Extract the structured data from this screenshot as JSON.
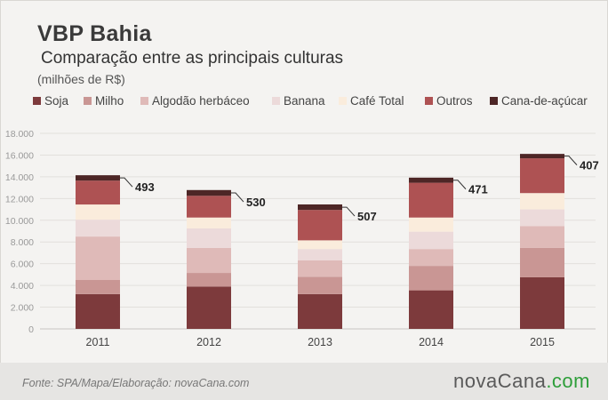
{
  "header": {
    "title": "VBP Bahia",
    "subtitle": "Comparação entre as principais culturas",
    "unit": "(milhões de R$)"
  },
  "footer": {
    "source": "Fonte: SPA/Mapa/Elaboração: novaCana.com",
    "brand_main": "novaCana",
    "brand_suffix": ".com",
    "brand_suffix_color": "#2e9e3a"
  },
  "chart_data": {
    "type": "bar",
    "stacked": true,
    "title": "VBP Bahia",
    "subtitle": "Comparação entre as principais culturas",
    "ylabel": "(milhões de R$)",
    "categories": [
      "2011",
      "2012",
      "2013",
      "2014",
      "2015"
    ],
    "ylim": [
      0,
      18000
    ],
    "yticks": [
      0,
      2000,
      4000,
      6000,
      8000,
      10000,
      12000,
      14000,
      16000,
      18000
    ],
    "ytick_labels": [
      "0",
      "2.000",
      "4.000",
      "6.000",
      "8.000",
      "10.000",
      "12.000",
      "14.000",
      "16.000",
      "18.000"
    ],
    "grid": true,
    "legend_position": "top",
    "series": [
      {
        "name": "Soja",
        "color": "#7d3a3c",
        "values": [
          3200,
          3900,
          3200,
          3550,
          4750
        ]
      },
      {
        "name": "Milho",
        "color": "#c99694",
        "values": [
          1300,
          1250,
          1600,
          2250,
          2700
        ]
      },
      {
        "name": "Algodão herbáceo",
        "color": "#dfbab8",
        "values": [
          4000,
          2300,
          1500,
          1550,
          2000
        ]
      },
      {
        "name": "Banana",
        "color": "#ecdada",
        "values": [
          1550,
          1800,
          1050,
          1600,
          1550
        ]
      },
      {
        "name": "Café Total",
        "color": "#faecdc",
        "values": [
          1400,
          1000,
          800,
          1300,
          1500
        ]
      },
      {
        "name": "Outros",
        "color": "#ae5253",
        "values": [
          2200,
          2000,
          2800,
          3200,
          3200
        ]
      },
      {
        "name": "Cana-de-açúcar",
        "color": "#4d2626",
        "values": [
          493,
          530,
          507,
          471,
          407
        ]
      }
    ],
    "data_labels": [
      "493",
      "530",
      "507",
      "471",
      "407"
    ],
    "data_labels_series": "Cana-de-açúcar"
  }
}
